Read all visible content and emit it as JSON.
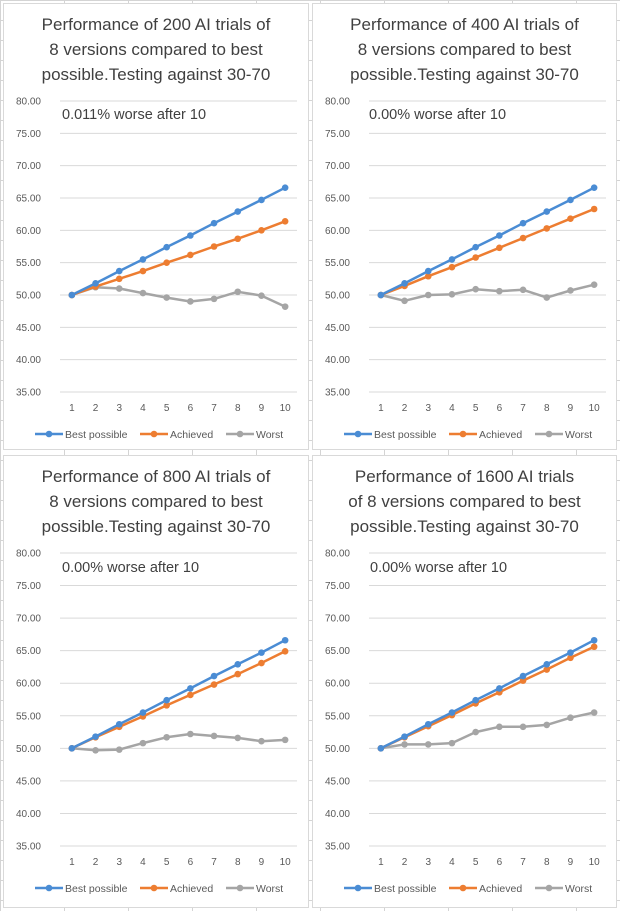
{
  "colors": {
    "best": "#4a8cd4",
    "achieved": "#ed7d31",
    "worst": "#a5a5a5",
    "grid": "#d9d9d9"
  },
  "chart_data": [
    {
      "type": "line",
      "title": "Performance of 200 AI trials of\n8 versions compared to best\npossible.Testing against 30-70",
      "annotation": "0.011% worse after 10",
      "x": [
        1,
        2,
        3,
        4,
        5,
        6,
        7,
        8,
        9,
        10
      ],
      "y_ticks": [
        "80.00",
        "75.00",
        "70.00",
        "65.00",
        "60.00",
        "55.00",
        "50.00",
        "45.00",
        "40.00",
        "35.00"
      ],
      "ylim": [
        35,
        80
      ],
      "legend_position": "bottom",
      "series": [
        {
          "name": "Best possible",
          "values": [
            50.0,
            51.8,
            53.7,
            55.5,
            57.4,
            59.2,
            61.1,
            62.9,
            64.7,
            66.6
          ]
        },
        {
          "name": "Achieved",
          "values": [
            50.0,
            51.3,
            52.5,
            53.7,
            55.0,
            56.2,
            57.5,
            58.7,
            60.0,
            61.4
          ]
        },
        {
          "name": "Worst",
          "values": [
            50.0,
            51.2,
            51.0,
            50.3,
            49.6,
            49.0,
            49.4,
            50.5,
            49.9,
            48.2
          ]
        }
      ]
    },
    {
      "type": "line",
      "title": "Performance of 400 AI trials of\n8 versions compared to best\npossible.Testing against 30-70",
      "annotation": "0.00% worse after 10",
      "x": [
        1,
        2,
        3,
        4,
        5,
        6,
        7,
        8,
        9,
        10
      ],
      "y_ticks": [
        "80.00",
        "75.00",
        "70.00",
        "65.00",
        "60.00",
        "55.00",
        "50.00",
        "45.00",
        "40.00",
        "35.00"
      ],
      "ylim": [
        35,
        80
      ],
      "legend_position": "bottom",
      "series": [
        {
          "name": "Best possible",
          "values": [
            50.0,
            51.8,
            53.7,
            55.5,
            57.4,
            59.2,
            61.1,
            62.9,
            64.7,
            66.6
          ]
        },
        {
          "name": "Achieved",
          "values": [
            50.0,
            51.4,
            52.9,
            54.3,
            55.8,
            57.3,
            58.8,
            60.3,
            61.8,
            63.3
          ]
        },
        {
          "name": "Worst",
          "values": [
            50.0,
            49.1,
            50.0,
            50.1,
            50.9,
            50.6,
            50.8,
            49.6,
            50.7,
            51.6
          ]
        }
      ]
    },
    {
      "type": "line",
      "title": "Performance of 800 AI trials of\n8 versions compared to best\npossible.Testing against 30-70",
      "annotation": "0.00% worse after 10",
      "x": [
        1,
        2,
        3,
        4,
        5,
        6,
        7,
        8,
        9,
        10
      ],
      "y_ticks": [
        "80.00",
        "75.00",
        "70.00",
        "65.00",
        "60.00",
        "55.00",
        "50.00",
        "45.00",
        "40.00",
        "35.00"
      ],
      "ylim": [
        35,
        80
      ],
      "legend_position": "bottom",
      "series": [
        {
          "name": "Best possible",
          "values": [
            50.0,
            51.8,
            53.7,
            55.5,
            57.4,
            59.2,
            61.1,
            62.9,
            64.7,
            66.6
          ]
        },
        {
          "name": "Achieved",
          "values": [
            50.0,
            51.7,
            53.3,
            54.9,
            56.6,
            58.2,
            59.8,
            61.4,
            63.1,
            64.9
          ]
        },
        {
          "name": "Worst",
          "values": [
            50.0,
            49.7,
            49.8,
            50.8,
            51.7,
            52.2,
            51.9,
            51.6,
            51.1,
            51.3
          ]
        }
      ]
    },
    {
      "type": "line",
      "title": "Performance of 1600 AI trials\nof 8 versions compared to best\npossible.Testing against 30-70",
      "annotation": "0.00% worse after 10",
      "x": [
        1,
        2,
        3,
        4,
        5,
        6,
        7,
        8,
        9,
        10
      ],
      "y_ticks": [
        "80.00",
        "75.00",
        "70.00",
        "65.00",
        "60.00",
        "55.00",
        "50.00",
        "45.00",
        "40.00",
        "35.00"
      ],
      "ylim": [
        35,
        80
      ],
      "legend_position": "bottom",
      "series": [
        {
          "name": "Best possible",
          "values": [
            50.0,
            51.8,
            53.7,
            55.5,
            57.4,
            59.2,
            61.1,
            62.9,
            64.7,
            66.6
          ]
        },
        {
          "name": "Achieved",
          "values": [
            50.0,
            51.7,
            53.4,
            55.1,
            56.9,
            58.6,
            60.4,
            62.1,
            63.9,
            65.6
          ]
        },
        {
          "name": "Worst",
          "values": [
            50.0,
            50.6,
            50.6,
            50.8,
            52.5,
            53.3,
            53.3,
            53.6,
            54.7,
            55.5
          ]
        }
      ]
    }
  ]
}
